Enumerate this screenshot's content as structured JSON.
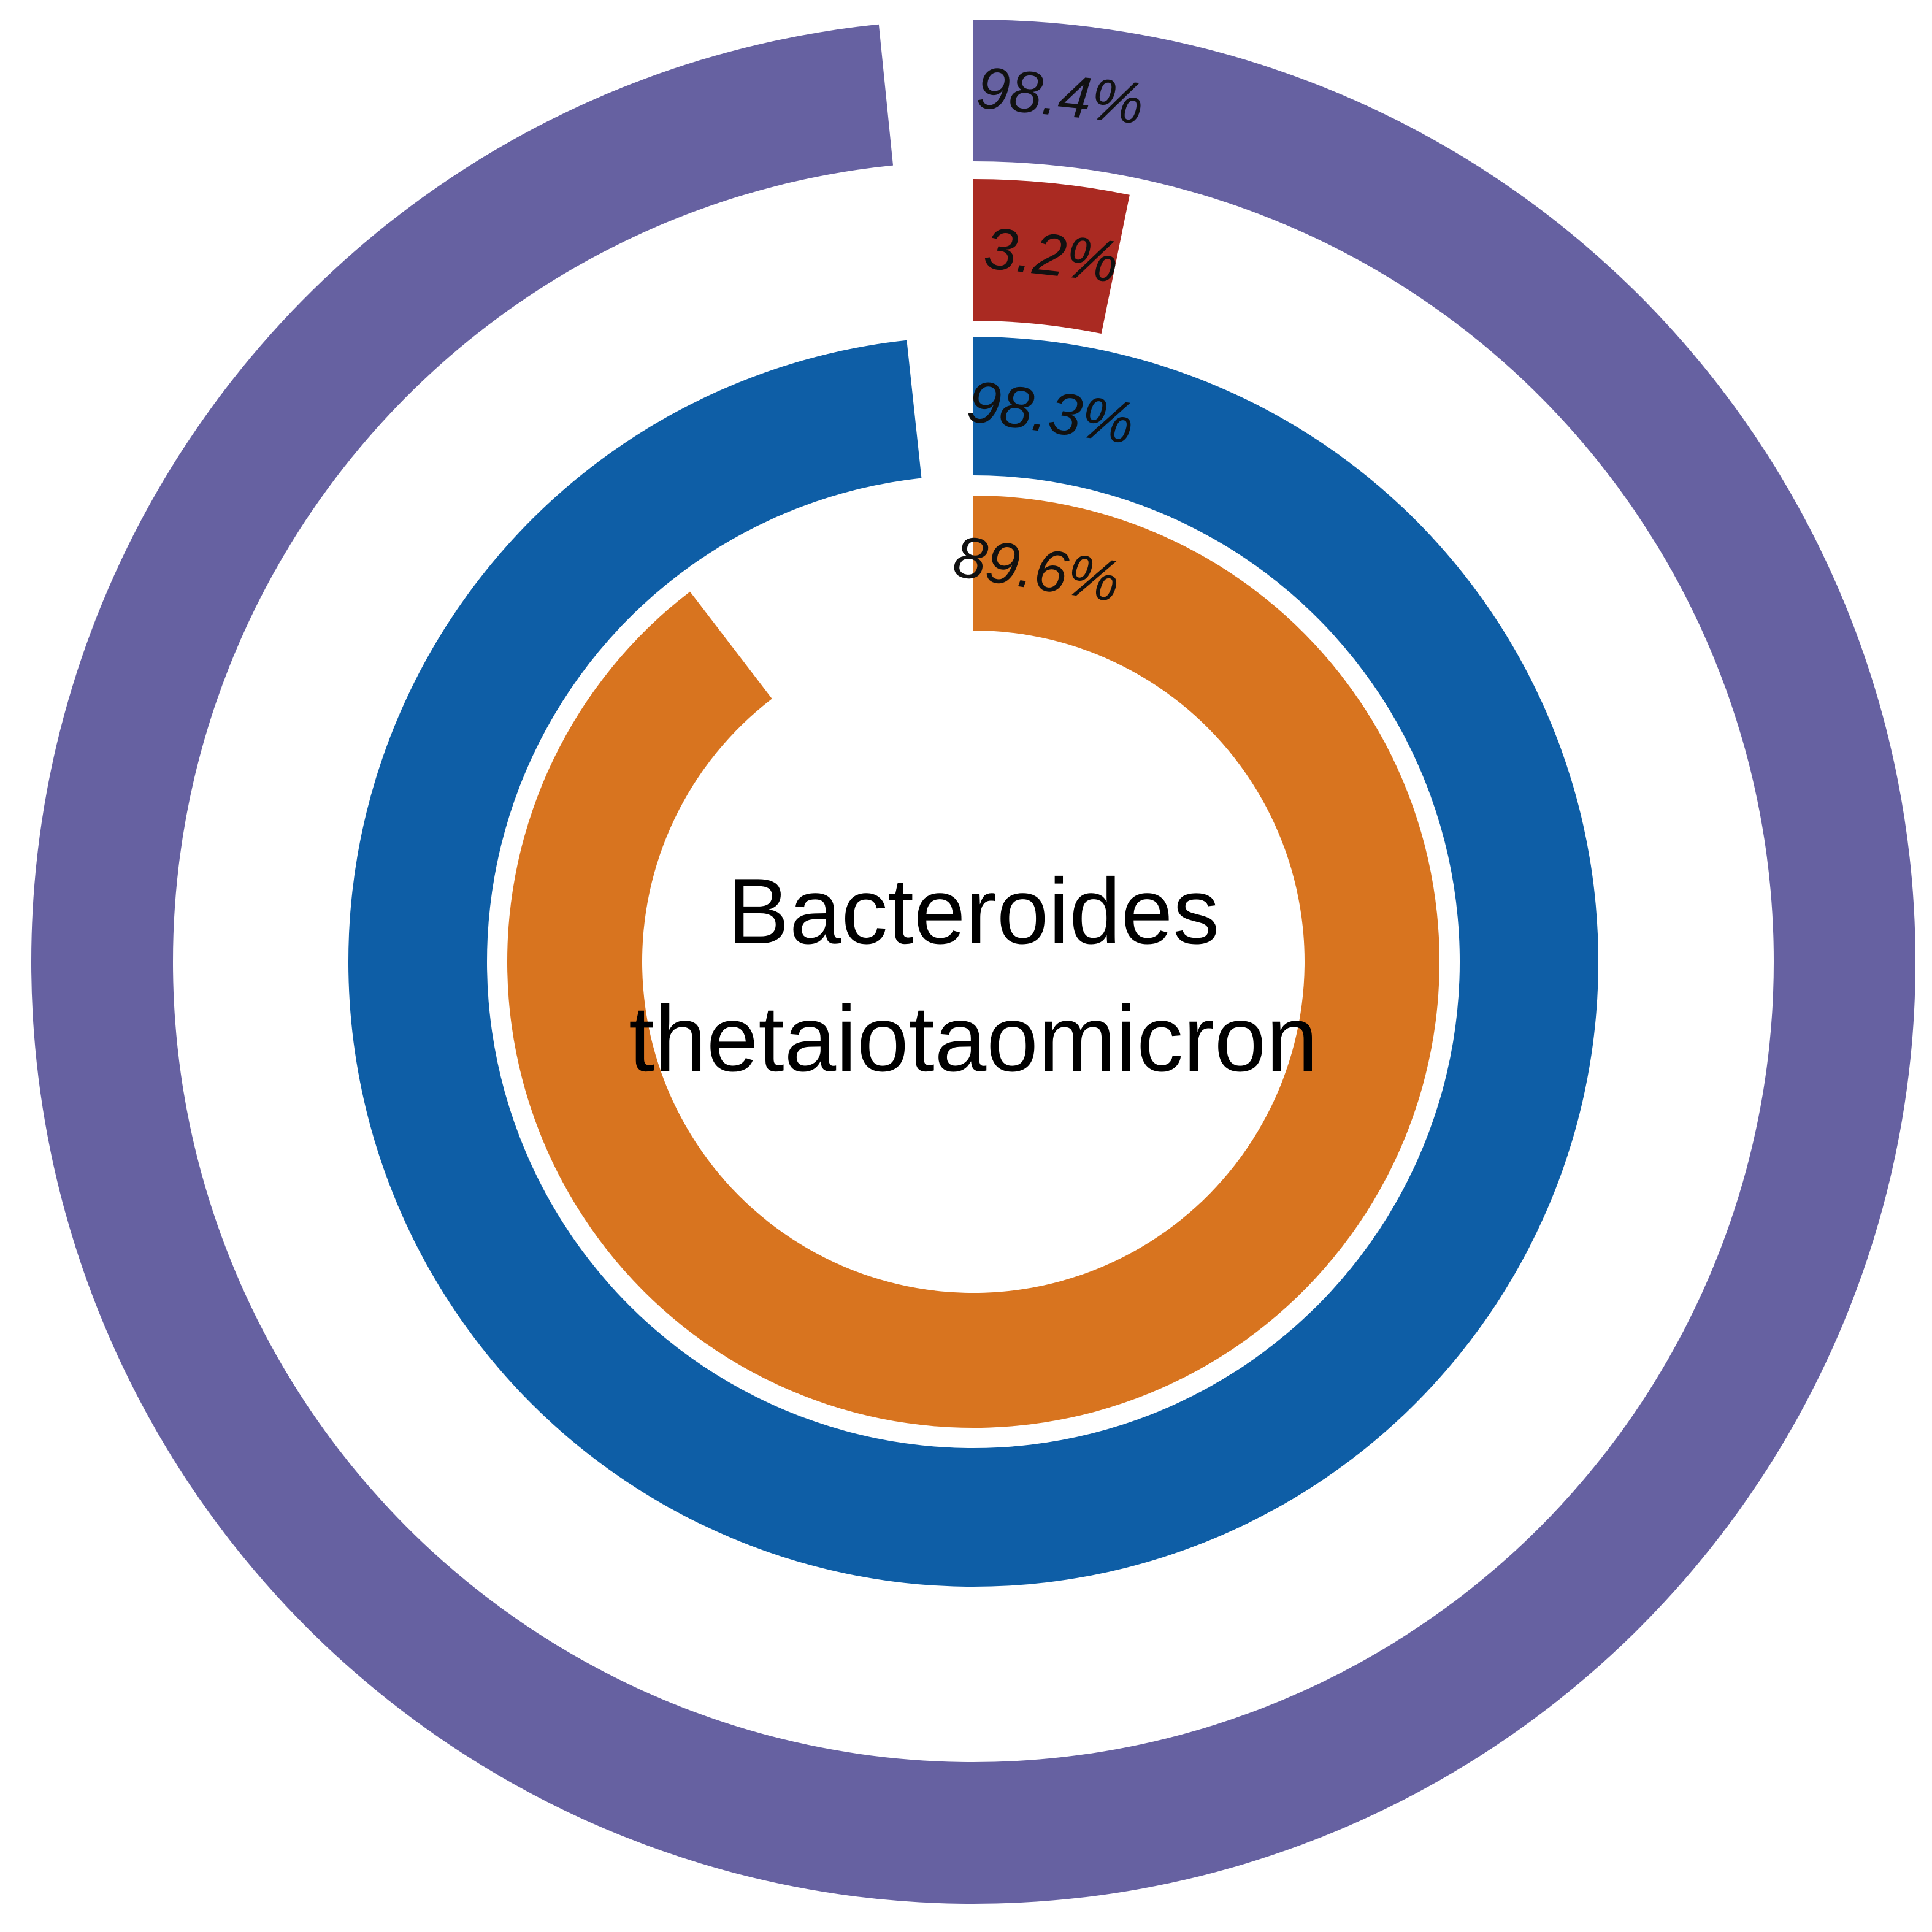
{
  "chart_data": {
    "type": "pie",
    "variant": "concentric-rings",
    "center_label": [
      "Bacteroides",
      "thetaiotaomicron"
    ],
    "rings": [
      {
        "value": 98.4,
        "label": "98.4%",
        "color": "#6661a1"
      },
      {
        "value": 3.2,
        "label": "3.2%",
        "color": "#aa2a22"
      },
      {
        "value": 98.3,
        "label": "98.3%",
        "color": "#0e5ea6"
      },
      {
        "value": 89.6,
        "label": "89.6%",
        "color": "#d8741f"
      }
    ],
    "start": "top",
    "direction": "clockwise",
    "max_value": 100
  }
}
